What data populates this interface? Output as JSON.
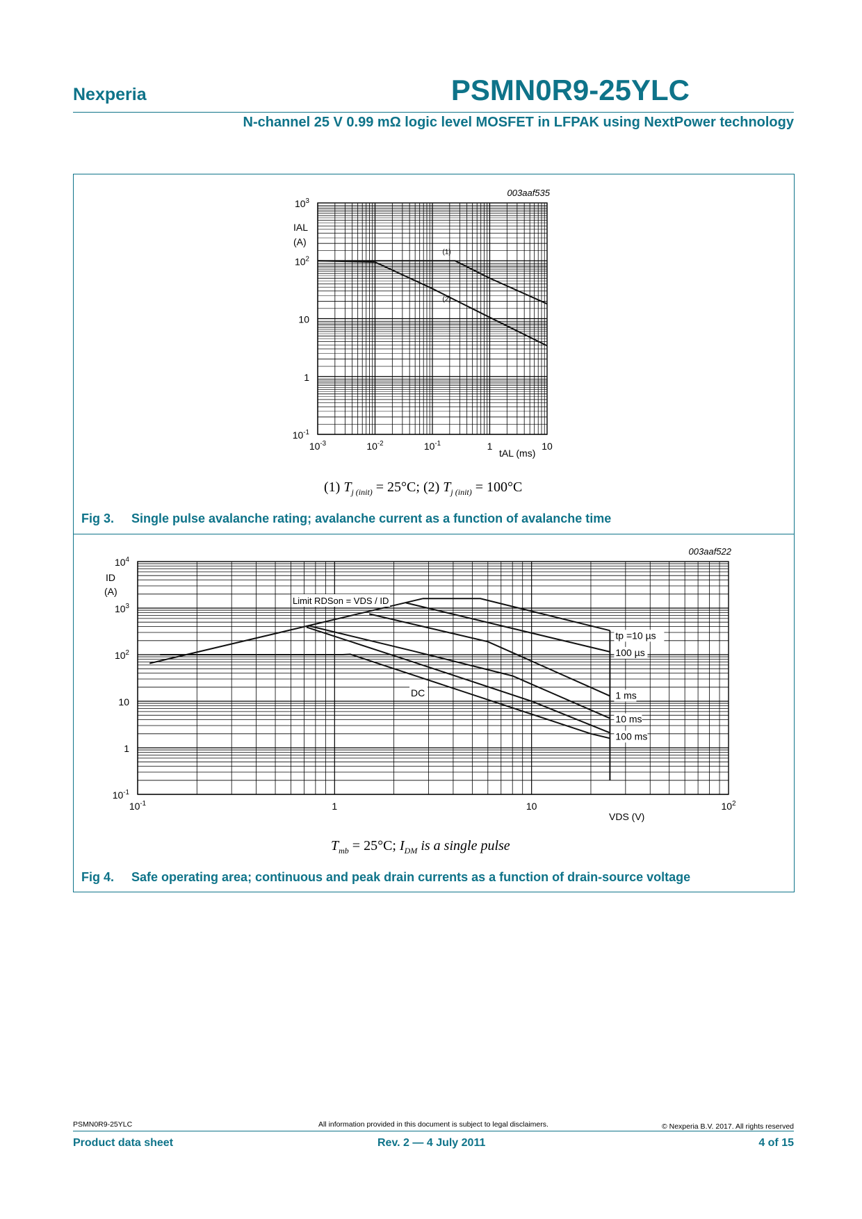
{
  "header": {
    "brand": "Nexperia",
    "product": "PSMN0R9-25YLC",
    "subtitle": "N-channel 25 V 0.99 mΩ logic level MOSFET in LFPAK using NextPower technology",
    "accent_color": "#0e7389"
  },
  "fig3": {
    "number": "Fig 3.",
    "caption": "Single pulse avalanche rating; avalanche current as a function of avalanche time",
    "formula": "(1) T j (init) = 25°C;  (2) T j (init) = 100°C",
    "formula_parts": {
      "p1": "(1) ",
      "t": "T",
      "sub": "j (init)",
      "v1": " = 25°C;  (2) ",
      "v2": " = 100°C"
    }
  },
  "fig4": {
    "number": "Fig 4.",
    "caption": "Safe operating area; continuous and peak drain currents as a function of drain-source voltage",
    "formula": "Tmb = 25°C; IDM is a single pulse",
    "formula_parts": {
      "t": "T",
      "tsub": "mb",
      "v1": " = 25°C;  ",
      "i": "I",
      "isub": "DM",
      "v2": " is a single pulse"
    }
  },
  "chart_data": [
    {
      "type": "line",
      "id": "003aaf535",
      "title": "",
      "xlabel": "tAL (ms)",
      "ylabel": "IAL (A)",
      "xscale": "log",
      "yscale": "log",
      "xlim": [
        0.001,
        10
      ],
      "ylim": [
        0.1,
        1000
      ],
      "xticks": [
        "10-3",
        "10-2",
        "10-1",
        "1",
        "10"
      ],
      "yticks": [
        "10-1",
        "1",
        "10",
        "102",
        "103"
      ],
      "grid": true,
      "series": [
        {
          "name": "(1)",
          "x": [
            0.001,
            0.25,
            1,
            10
          ],
          "y": [
            100,
            100,
            50,
            18
          ]
        },
        {
          "name": "(2)",
          "x": [
            0.001,
            0.01,
            0.1,
            1,
            10
          ],
          "y": [
            100,
            95,
            33,
            10.5,
            3.4
          ]
        }
      ]
    },
    {
      "type": "line",
      "id": "003aaf522",
      "title": "",
      "xlabel": "VDS (V)",
      "ylabel": "ID (A)",
      "xscale": "log",
      "yscale": "log",
      "xlim": [
        0.1,
        100
      ],
      "ylim": [
        0.1,
        10000
      ],
      "xticks": [
        "10-1",
        "1",
        "10",
        "102"
      ],
      "yticks": [
        "10-1",
        "1",
        "10",
        "102",
        "103",
        "104"
      ],
      "grid": true,
      "annotation": "Limit RDSon = VDS / ID",
      "series": [
        {
          "name": "Limit RDSon = VDS / ID",
          "x": [
            0.115,
            2.8
          ],
          "y": [
            65,
            1600
          ]
        },
        {
          "name": "tp =10 µs",
          "x": [
            2.8,
            5.5,
            25
          ],
          "y": [
            1600,
            1600,
            330
          ]
        },
        {
          "name": "100 µs",
          "x": [
            2.3,
            25
          ],
          "y": [
            1300,
            115
          ]
        },
        {
          "name": "1 ms",
          "x": [
            1.5,
            6,
            25
          ],
          "y": [
            750,
            190,
            13
          ]
        },
        {
          "name": "10 ms",
          "x": [
            0.75,
            2.5,
            8,
            25
          ],
          "y": [
            410,
            120,
            35,
            4.3
          ]
        },
        {
          "name": "100 ms",
          "x": [
            0.72,
            2.5,
            10,
            25
          ],
          "y": [
            390,
            70,
            10,
            2.1
          ]
        },
        {
          "name": "DC",
          "x": [
            0.13,
            1.1,
            1.2,
            20,
            25
          ],
          "y": [
            100,
            100,
            102,
            2,
            1.6
          ]
        },
        {
          "name": "VDS max",
          "x": [
            25,
            25
          ],
          "y": [
            330,
            0.2
          ]
        }
      ],
      "labels": [
        "tp =10 µs",
        "100 µs",
        "1 ms",
        "10 ms",
        "100 ms",
        "DC"
      ]
    }
  ],
  "footer": {
    "product": "PSMN0R9-25YLC",
    "disclaimer": "All information provided in this document is subject to legal disclaimers.",
    "copyright": "© Nexperia B.V. 2017. All rights reserved",
    "doc_type": "Product data sheet",
    "revision": "Rev. 2 — 4 July 2011",
    "page": "4 of 15"
  }
}
